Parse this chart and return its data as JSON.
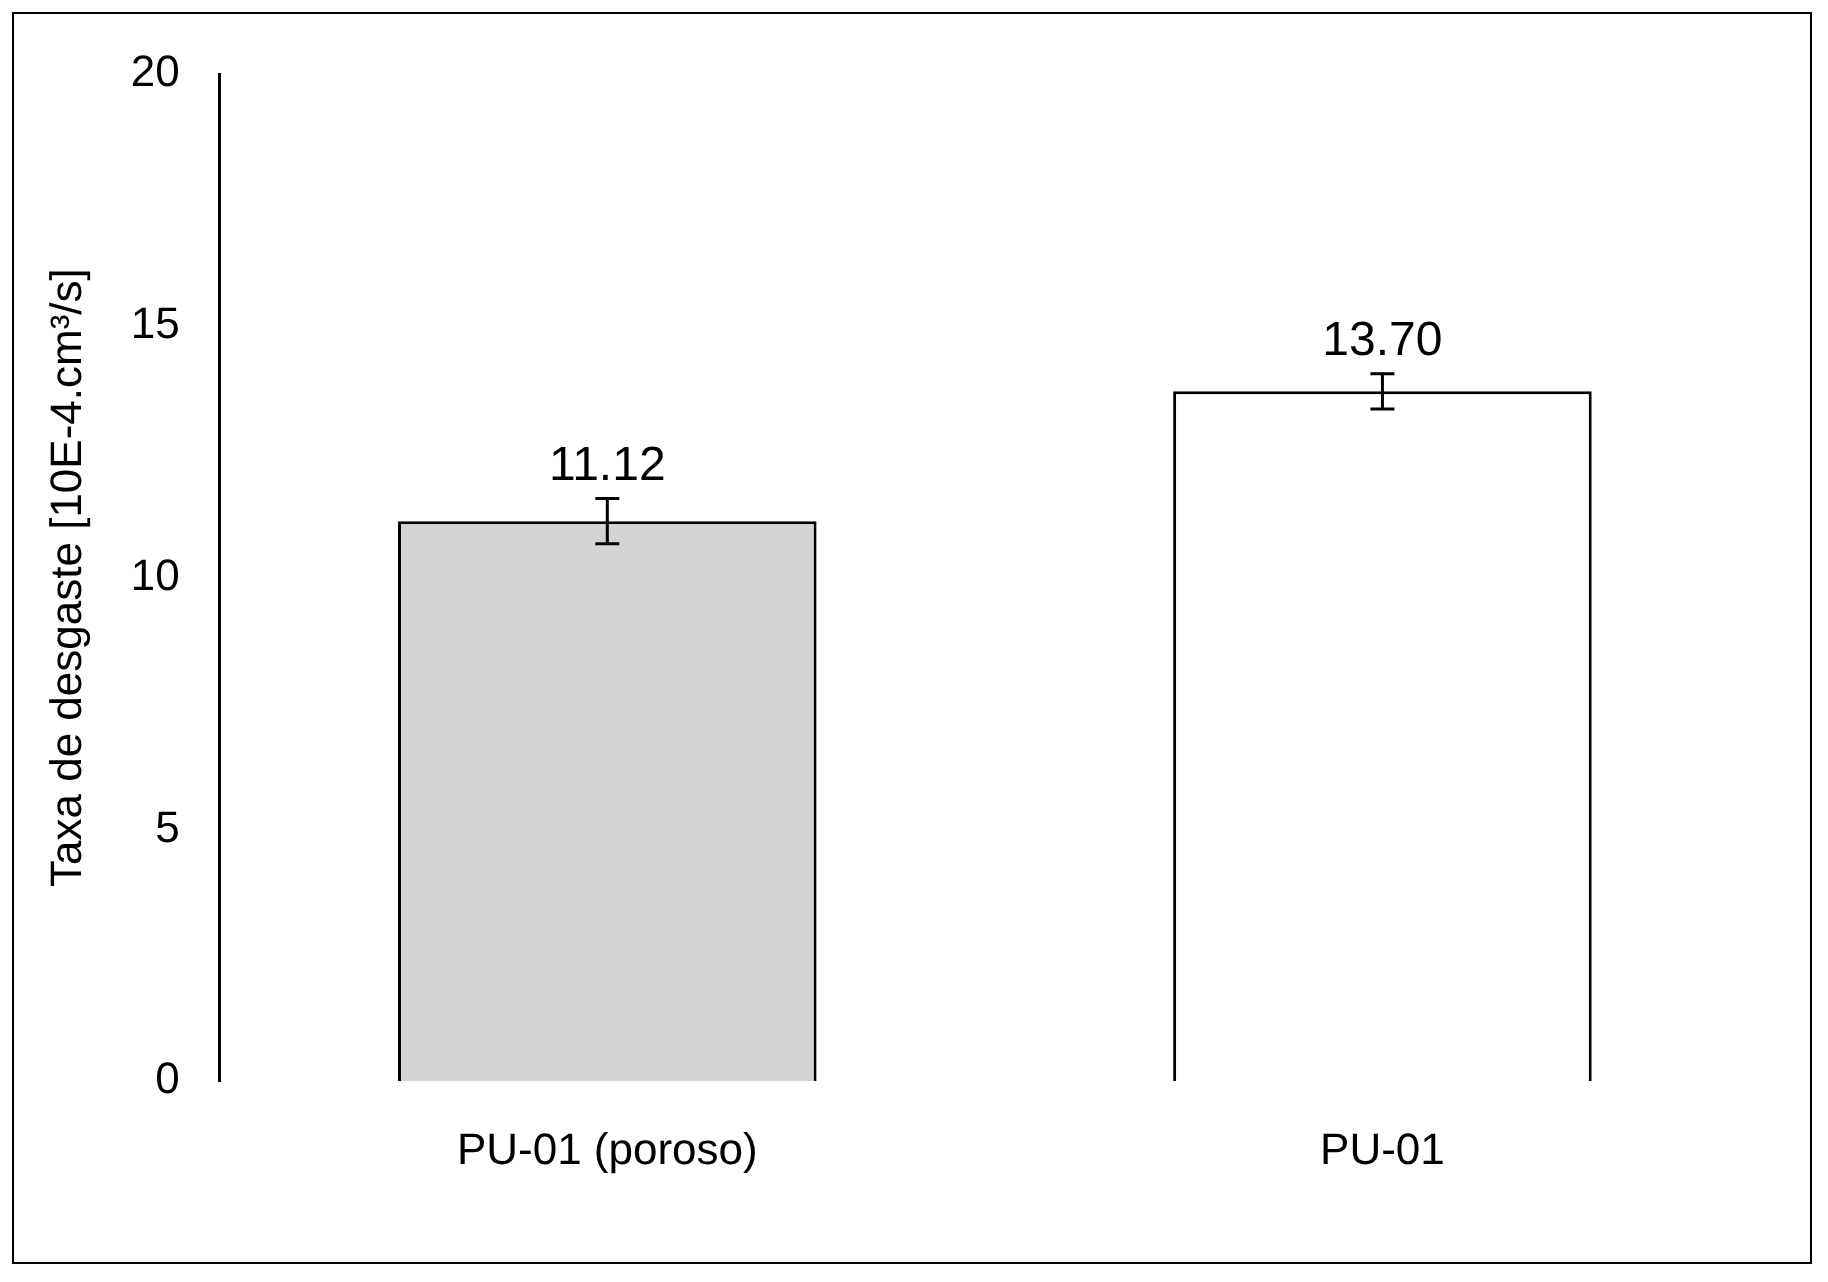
{
  "chart_data": {
    "type": "bar",
    "ylabel": "Taxa de desgaste [10E-4.cm³/s]",
    "categories": [
      "PU-01 (poroso)",
      "PU-01"
    ],
    "values": [
      11.12,
      13.7
    ],
    "colors": [
      "#d4d4d4",
      "#ffffff"
    ],
    "errors": [
      0.45,
      0.35
    ],
    "ylim": [
      0,
      20
    ],
    "yticks": [
      0,
      5,
      10,
      15,
      20
    ],
    "value_labels": [
      "11.12",
      "13.70"
    ],
    "grid": false,
    "legend": false
  }
}
